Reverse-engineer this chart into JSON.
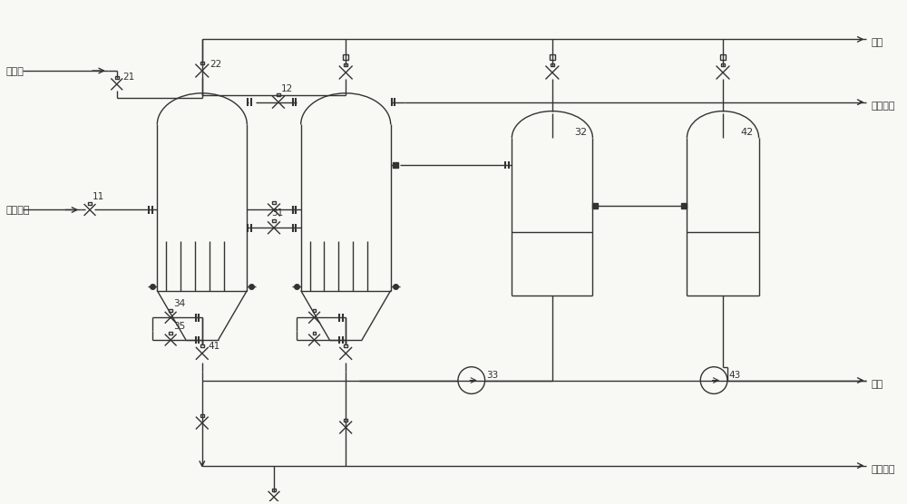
{
  "bg_color": "#f8f8f4",
  "line_color": "#333333",
  "figsize": [
    10.0,
    5.56
  ],
  "dpi": 100,
  "labels": {
    "fan_xi_qi": "反洗气",
    "cui_hua_you_jiang": "催化油浆",
    "jing_hua_you_jiang": "净化油浆",
    "pai_qi": "排气",
    "zha_jiang": "渣浆",
    "jing_hua_you_jiang2": "净化油浆"
  }
}
